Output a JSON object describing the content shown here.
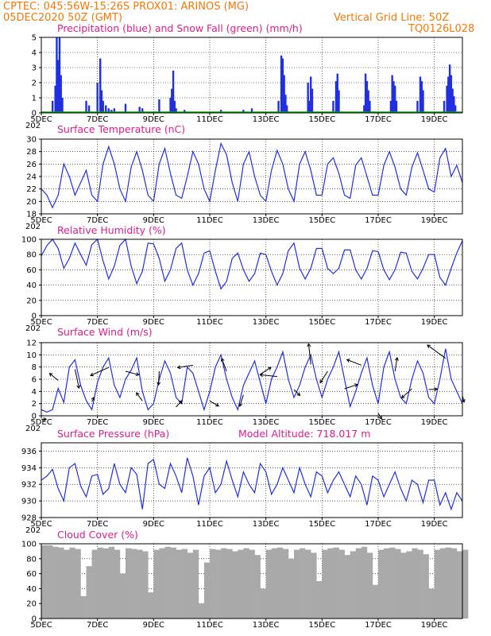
{
  "header": {
    "line1": "CPTEC:   045:56W-15:26S   PROX01: ARINOS (MG)",
    "line2": "05DEC2020 50Z (GMT)",
    "grid_note": "Vertical Grid Line: 50Z",
    "code": "TQ0126L028"
  },
  "colors": {
    "header": "#f07a0a",
    "title": "#e01c8c",
    "line": "#2030e0",
    "snow": "#10a010",
    "cloud": "#a9a9a9"
  },
  "x_axis": {
    "start_day": 5,
    "end_day": 20,
    "ticks": [
      {
        "day": 5,
        "label": "5DEC"
      },
      {
        "day": 7,
        "label": "7DEC"
      },
      {
        "day": 9,
        "label": "9DEC"
      },
      {
        "day": 11,
        "label": "11DEC"
      },
      {
        "day": 13,
        "label": "13DEC"
      },
      {
        "day": 15,
        "label": "15DEC"
      },
      {
        "day": 17,
        "label": "17DEC"
      },
      {
        "day": 19,
        "label": "19DEC"
      }
    ],
    "year_stub": "202"
  },
  "chart_data": [
    {
      "type": "bar",
      "title": "Precipitation (blue) and Snow Fall (green) (mm/h)",
      "ylim": [
        0,
        5
      ],
      "yticks": [
        0,
        1,
        2,
        3,
        4,
        5
      ],
      "series": [
        {
          "name": "Precipitation",
          "x": [
            5.4,
            5.5,
            5.55,
            5.6,
            5.65,
            5.7,
            5.75,
            6.6,
            6.7,
            7.0,
            7.1,
            7.15,
            7.2,
            7.3,
            7.4,
            7.5,
            7.6,
            8.0,
            8.5,
            8.6,
            9.2,
            9.6,
            9.65,
            9.7,
            9.75,
            9.8,
            10.1,
            11.4,
            12.2,
            12.5,
            13.45,
            13.55,
            13.6,
            13.65,
            13.7,
            13.75,
            14.5,
            14.55,
            14.6,
            14.65,
            15.4,
            15.5,
            15.55,
            15.6,
            16.5,
            16.55,
            16.6,
            16.65,
            16.7,
            17.45,
            17.5,
            17.55,
            17.6,
            17.65,
            18.4,
            18.5,
            18.55,
            18.6,
            19.35,
            19.45,
            19.5,
            19.55,
            19.6,
            19.65,
            19.7,
            19.75
          ],
          "values": [
            0.8,
            1.8,
            5,
            3.5,
            5,
            2.5,
            1,
            0.8,
            0.5,
            2,
            3.6,
            1.5,
            0.8,
            0.5,
            0.3,
            0.2,
            0.3,
            0.6,
            0.4,
            0.3,
            0.9,
            1,
            1.6,
            2.8,
            0.8,
            0.3,
            0.2,
            0.2,
            0.2,
            0.3,
            0.8,
            3.8,
            3.6,
            2.5,
            1.2,
            0.5,
            2,
            0.8,
            2.4,
            1.6,
            0.8,
            2.1,
            2.6,
            1.5,
            0.5,
            2.6,
            2.1,
            1.5,
            0.8,
            0.8,
            2.5,
            2.1,
            1.8,
            0.8,
            0.8,
            2.4,
            2.1,
            1.5,
            0.8,
            1.8,
            2.4,
            3.2,
            2.5,
            1.6,
            1.1,
            0.5
          ]
        },
        {
          "name": "Snow Fall",
          "x": [],
          "values": []
        }
      ]
    },
    {
      "type": "line",
      "title": "Surface Temperature (nC)",
      "ylim": [
        18,
        30
      ],
      "yticks": [
        18,
        20,
        22,
        24,
        26,
        28,
        30
      ],
      "x": [
        5.0,
        5.2,
        5.4,
        5.6,
        5.8,
        6.0,
        6.2,
        6.4,
        6.6,
        6.8,
        7.0,
        7.2,
        7.4,
        7.6,
        7.8,
        8.0,
        8.2,
        8.4,
        8.6,
        8.8,
        9.0,
        9.2,
        9.4,
        9.6,
        9.8,
        10.0,
        10.2,
        10.4,
        10.6,
        10.8,
        11.0,
        11.2,
        11.4,
        11.6,
        11.8,
        12.0,
        12.2,
        12.4,
        12.6,
        12.8,
        13.0,
        13.2,
        13.4,
        13.6,
        13.8,
        14.0,
        14.2,
        14.4,
        14.6,
        14.8,
        15.0,
        15.2,
        15.4,
        15.6,
        15.8,
        16.0,
        16.2,
        16.4,
        16.6,
        16.8,
        17.0,
        17.2,
        17.4,
        17.6,
        17.8,
        18.0,
        18.2,
        18.4,
        18.6,
        18.8,
        19.0,
        19.2,
        19.4,
        19.6,
        19.8,
        20.0
      ],
      "values": [
        22,
        21,
        19,
        21,
        26,
        24,
        21,
        23,
        25,
        21,
        20,
        26,
        28.8,
        26,
        22,
        20,
        25.5,
        28,
        25,
        21,
        20,
        26,
        28.5,
        24.5,
        21,
        20.5,
        24,
        28,
        26,
        22,
        20,
        25,
        29.3,
        27.5,
        23,
        20,
        26,
        28,
        24,
        21,
        20,
        25,
        28.2,
        26,
        22,
        20,
        26,
        28,
        25,
        21,
        21,
        26,
        27,
        24.5,
        21,
        20.5,
        25.8,
        27,
        24,
        21,
        21,
        25.8,
        28,
        25.5,
        22,
        21,
        25.5,
        27.8,
        25,
        22,
        21.5,
        27,
        28.5,
        24,
        25.8,
        23
      ]
    },
    {
      "type": "line",
      "title": "Relative Humidity (%)",
      "ylim": [
        0,
        100
      ],
      "yticks": [
        0,
        20,
        40,
        60,
        80,
        100
      ],
      "x": [
        5.0,
        5.2,
        5.4,
        5.6,
        5.8,
        6.0,
        6.2,
        6.4,
        6.6,
        6.8,
        7.0,
        7.2,
        7.4,
        7.6,
        7.8,
        8.0,
        8.2,
        8.4,
        8.6,
        8.8,
        9.0,
        9.2,
        9.4,
        9.6,
        9.8,
        10.0,
        10.2,
        10.4,
        10.6,
        10.8,
        11.0,
        11.2,
        11.4,
        11.6,
        11.8,
        12.0,
        12.2,
        12.4,
        12.6,
        12.8,
        13.0,
        13.2,
        13.4,
        13.6,
        13.8,
        14.0,
        14.2,
        14.4,
        14.6,
        14.8,
        15.0,
        15.2,
        15.4,
        15.6,
        15.8,
        16.0,
        16.2,
        16.4,
        16.6,
        16.8,
        17.0,
        17.2,
        17.4,
        17.6,
        17.8,
        18.0,
        18.2,
        18.4,
        18.6,
        18.8,
        19.0,
        19.2,
        19.4,
        19.6,
        19.8,
        20.0
      ],
      "values": [
        78,
        92,
        100,
        88,
        62,
        75,
        95,
        80,
        66,
        93,
        100,
        72,
        48,
        65,
        92,
        100,
        65,
        42,
        58,
        95,
        94,
        75,
        45,
        60,
        88,
        95,
        60,
        40,
        55,
        82,
        85,
        58,
        35,
        45,
        75,
        82,
        60,
        45,
        55,
        82,
        80,
        58,
        40,
        55,
        85,
        95,
        62,
        48,
        62,
        88,
        88,
        62,
        55,
        62,
        86,
        86,
        60,
        48,
        62,
        85,
        84,
        60,
        47,
        60,
        83,
        82,
        58,
        48,
        62,
        80,
        80,
        50,
        40,
        62,
        82,
        98
      ]
    },
    {
      "type": "line",
      "title": "Surface Wind (m/s)",
      "ylim": [
        0,
        12
      ],
      "yticks": [
        0,
        2,
        4,
        6,
        8,
        10,
        12
      ],
      "x": [
        5.0,
        5.2,
        5.4,
        5.6,
        5.8,
        6.0,
        6.2,
        6.4,
        6.6,
        6.8,
        7.0,
        7.2,
        7.4,
        7.6,
        7.8,
        8.0,
        8.2,
        8.4,
        8.6,
        8.8,
        9.0,
        9.2,
        9.4,
        9.6,
        9.8,
        10.0,
        10.2,
        10.4,
        10.6,
        10.8,
        11.0,
        11.2,
        11.4,
        11.6,
        11.8,
        12.0,
        12.2,
        12.4,
        12.6,
        12.8,
        13.0,
        13.2,
        13.4,
        13.6,
        13.8,
        14.0,
        14.2,
        14.4,
        14.6,
        14.8,
        15.0,
        15.2,
        15.4,
        15.6,
        15.8,
        16.0,
        16.2,
        16.4,
        16.6,
        16.8,
        17.0,
        17.2,
        17.4,
        17.6,
        17.8,
        18.0,
        18.2,
        18.4,
        18.6,
        18.8,
        19.0,
        19.2,
        19.4,
        19.6,
        19.8,
        20.0
      ],
      "values": [
        1,
        0.6,
        1,
        4.5,
        2.2,
        8,
        9.2,
        5,
        2.5,
        1,
        5.5,
        8,
        9.5,
        5,
        3,
        6,
        7.5,
        9.5,
        4,
        1,
        2,
        6,
        9,
        7,
        3,
        2,
        8,
        7,
        4,
        1,
        4,
        8,
        10,
        6,
        3,
        1,
        5,
        7,
        9,
        5.5,
        2,
        6,
        8,
        10.5,
        6,
        3,
        5,
        8,
        10,
        6,
        3,
        6,
        8,
        10.5,
        6,
        1.5,
        4,
        7,
        9.5,
        5,
        2,
        8,
        10.5,
        6,
        3,
        2,
        6,
        9,
        7,
        3,
        2,
        6,
        11,
        6,
        4,
        2
      ]
    },
    {
      "type": "line",
      "title": "Surface Pressure (hPa)",
      "subtitle": "Model Altitude: 718.017 m",
      "ylim": [
        928,
        937
      ],
      "yticks": [
        928,
        930,
        932,
        934,
        936
      ],
      "x": [
        5.0,
        5.2,
        5.4,
        5.6,
        5.8,
        6.0,
        6.2,
        6.4,
        6.6,
        6.8,
        7.0,
        7.2,
        7.4,
        7.6,
        7.8,
        8.0,
        8.2,
        8.4,
        8.6,
        8.8,
        9.0,
        9.2,
        9.4,
        9.6,
        9.8,
        10.0,
        10.2,
        10.4,
        10.6,
        10.8,
        11.0,
        11.2,
        11.4,
        11.6,
        11.8,
        12.0,
        12.2,
        12.4,
        12.6,
        12.8,
        13.0,
        13.2,
        13.4,
        13.6,
        13.8,
        14.0,
        14.2,
        14.4,
        14.6,
        14.8,
        15.0,
        15.2,
        15.4,
        15.6,
        15.8,
        16.0,
        16.2,
        16.4,
        16.6,
        16.8,
        17.0,
        17.2,
        17.4,
        17.6,
        17.8,
        18.0,
        18.2,
        18.4,
        18.6,
        18.8,
        19.0,
        19.2,
        19.4,
        19.6,
        19.8,
        20.0
      ],
      "values": [
        932.5,
        933,
        933.8,
        931.5,
        930,
        934,
        934.5,
        931.8,
        930.5,
        933,
        933.2,
        930.8,
        931.5,
        934.5,
        932,
        931,
        934,
        933.2,
        929,
        934.5,
        935,
        932,
        931.5,
        934.5,
        933,
        931,
        935.2,
        933,
        929.5,
        933,
        934,
        931,
        932,
        934.8,
        932.5,
        930.5,
        933.5,
        932,
        931,
        934.5,
        933.5,
        930.8,
        932,
        934,
        932.5,
        931,
        934,
        932,
        930.5,
        933.5,
        933,
        931,
        932.5,
        933.5,
        932,
        930.5,
        933,
        932,
        929.5,
        933,
        932.5,
        930.5,
        932,
        933.5,
        931.5,
        930,
        932.5,
        932,
        929.8,
        932.5,
        932.5,
        929.5,
        931,
        929,
        931,
        930
      ]
    },
    {
      "type": "bar",
      "title": "Cloud Cover (%)",
      "ylim": [
        0,
        100
      ],
      "yticks": [
        0,
        20,
        40,
        60,
        80,
        100
      ],
      "x": [
        5.0,
        5.2,
        5.4,
        5.6,
        5.8,
        6.0,
        6.2,
        6.4,
        6.6,
        6.8,
        7.0,
        7.2,
        7.4,
        7.6,
        7.8,
        8.0,
        8.2,
        8.4,
        8.6,
        8.8,
        9.0,
        9.2,
        9.4,
        9.6,
        9.8,
        10.0,
        10.2,
        10.4,
        10.6,
        10.8,
        11.0,
        11.2,
        11.4,
        11.6,
        11.8,
        12.0,
        12.2,
        12.4,
        12.6,
        12.8,
        13.0,
        13.2,
        13.4,
        13.6,
        13.8,
        14.0,
        14.2,
        14.4,
        14.6,
        14.8,
        15.0,
        15.2,
        15.4,
        15.6,
        15.8,
        16.0,
        16.2,
        16.4,
        16.6,
        16.8,
        17.0,
        17.2,
        17.4,
        17.6,
        17.8,
        18.0,
        18.2,
        18.4,
        18.6,
        18.8,
        19.0,
        19.2,
        19.4,
        19.6,
        19.8,
        20.0
      ],
      "values": [
        98,
        98,
        96,
        95,
        92,
        95,
        93,
        30,
        70,
        92,
        95,
        94,
        96,
        92,
        60,
        94,
        93,
        92,
        90,
        35,
        92,
        94,
        96,
        95,
        92,
        93,
        88,
        92,
        20,
        75,
        93,
        92,
        94,
        93,
        90,
        92,
        94,
        92,
        85,
        40,
        92,
        94,
        95,
        93,
        80,
        92,
        94,
        92,
        88,
        50,
        92,
        94,
        95,
        92,
        85,
        90,
        94,
        96,
        88,
        45,
        92,
        94,
        95,
        93,
        88,
        90,
        94,
        92,
        86,
        40,
        92,
        94,
        95,
        94,
        90,
        92
      ]
    }
  ]
}
